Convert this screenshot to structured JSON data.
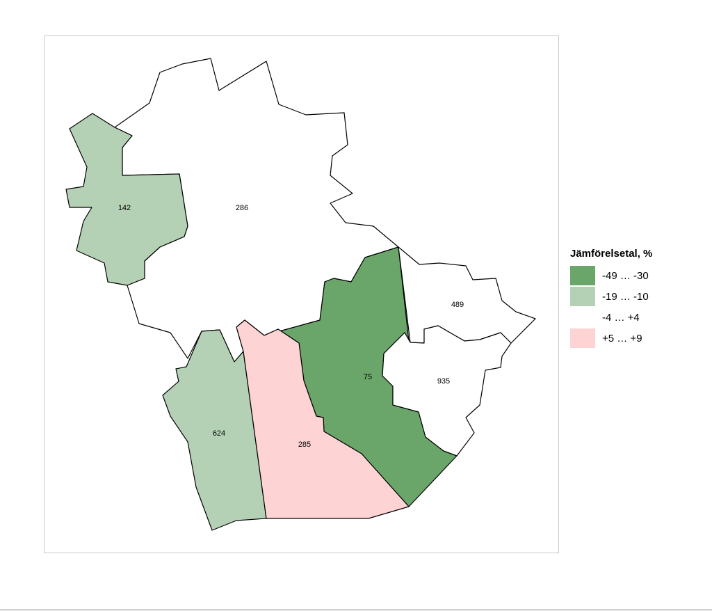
{
  "legend": {
    "title": "Jämförelsetal, %",
    "classes": [
      {
        "label": "-49 … -30",
        "color": "#6aa56a"
      },
      {
        "label": "-19 … -10",
        "color": "#b5d1b5"
      },
      {
        "label": "-4 … +4",
        "color": "#ffffff"
      },
      {
        "label": "+5 … +9",
        "color": "#fdd3d4"
      }
    ]
  },
  "regions": [
    {
      "id": "142",
      "label": "142",
      "class_index": 2
    },
    {
      "id": "286",
      "label": "286",
      "class_index": 1
    },
    {
      "id": "489",
      "label": "489",
      "class_index": 0
    },
    {
      "id": "75",
      "label": "75",
      "class_index": 2
    },
    {
      "id": "935",
      "label": "935",
      "class_index": 2
    },
    {
      "id": "624",
      "label": "624",
      "class_index": 1
    },
    {
      "id": "285",
      "label": "285",
      "class_index": 3
    }
  ]
}
